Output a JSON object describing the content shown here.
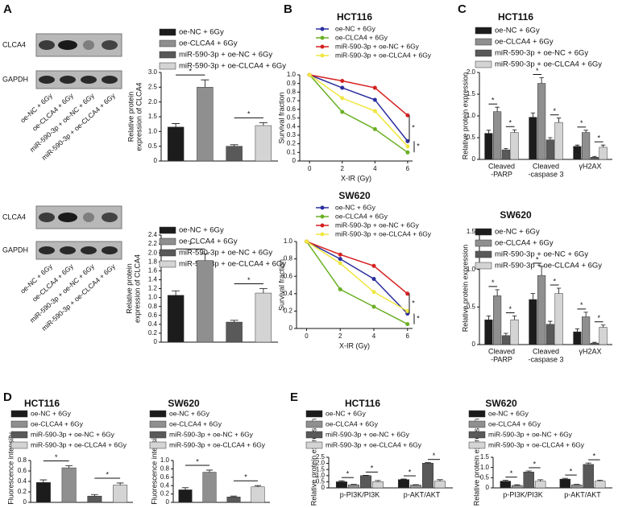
{
  "panel_labels": [
    "A",
    "B",
    "C",
    "D",
    "E"
  ],
  "blots": [
    {
      "labels": [
        "CLCA4",
        "GAPDH"
      ],
      "lanes": [
        "oe-NC + 6Gy",
        "oe-CLCA4 + 6Gy",
        "miR-590-3p + oe-NC + 6Gy",
        "miR-590-3p + oe-CLCA4 + 6Gy"
      ]
    },
    {
      "labels": [
        "CLCA4",
        "GAPDH"
      ],
      "lanes": [
        "oe-NC + 6Gy",
        "oe-CLCA4 + 6Gy",
        "miR-590-3p + oe-NC + 6Gy",
        "miR-590-3p + oe-CLCA4 + 6Gy"
      ]
    }
  ],
  "chart_data": [
    {
      "type": "bar",
      "ylabel": [
        "Relative protein",
        "expression of CLCA4"
      ],
      "categories": [
        "oe-NC + 6Gy",
        "oe-CLCA4 + 6Gy",
        "miR-590-3p + oe-NC + 6Gy",
        "miR-590-3p + oe-CLCA4 + 6Gy"
      ],
      "colors": [
        "#1c1c1c",
        "#8f8f8f",
        "#595959",
        "#d4d4d4"
      ],
      "values": [
        1.15,
        2.5,
        0.5,
        1.2
      ],
      "errors": [
        0.12,
        0.25,
        0.05,
        0.1
      ],
      "ylim": [
        0,
        3
      ],
      "yticks": [
        0,
        0.5,
        {
          "value": 1,
          "label": "1.0"
        },
        1.5,
        {
          "value": 2,
          "label": "2.0"
        },
        2.5,
        {
          "value": 3,
          "label": "3.0"
        }
      ],
      "annotations": [
        "*",
        "*"
      ]
    },
    {
      "type": "bar",
      "ylabel": [
        "Relative protein",
        "expression of CLCA4"
      ],
      "categories": [
        "oe-NC + 6Gy",
        "oe-CLCA4 + 6Gy",
        "miR-590-3p + oe-NC + 6Gy",
        "miR-590-3p + oe-CLCA4 + 6Gy"
      ],
      "colors": [
        "#1c1c1c",
        "#8f8f8f",
        "#595959",
        "#d4d4d4"
      ],
      "values": [
        1.05,
        1.83,
        0.45,
        1.1
      ],
      "errors": [
        0.1,
        0.15,
        0.04,
        0.1
      ],
      "ylim": [
        0,
        2.4
      ],
      "yticks": [
        0,
        0.2,
        0.4,
        0.6,
        0.8,
        {
          "value": 1,
          "label": "1.0"
        },
        1.2,
        1.4,
        1.6,
        1.8,
        {
          "value": 2,
          "label": "2.0"
        },
        2.2,
        2.4
      ],
      "annotations": [
        "*",
        "*"
      ]
    },
    {
      "type": "line",
      "title": "HCT116",
      "xlabel": "X-IR (Gy)",
      "ylabel": "Survival fraction",
      "x": [
        0,
        2,
        4,
        6
      ],
      "xlim": [
        -0.6,
        6.3
      ],
      "xticks": [
        0,
        2,
        4,
        6
      ],
      "series": [
        {
          "name": "oe-NC + 6Gy",
          "color": "#2b2f9e",
          "values": [
            1.0,
            0.85,
            0.71,
            0.23
          ]
        },
        {
          "name": "oe-CLCA4 + 6Gy",
          "color": "#6ab023",
          "values": [
            1.0,
            0.57,
            0.37,
            0.1
          ]
        },
        {
          "name": "miR-590-3p + oe-NC + 6Gy",
          "color": "#d62020",
          "values": [
            1.0,
            0.93,
            0.85,
            0.53
          ]
        },
        {
          "name": "miR-590-3p + oe-CLCA4 + 6Gy",
          "color": "#f0e640",
          "values": [
            1.0,
            0.73,
            0.58,
            0.17
          ]
        }
      ],
      "ylim": [
        0,
        1
      ],
      "yticks": [
        0,
        0.1,
        0.2,
        0.3,
        0.4,
        0.5,
        0.6,
        0.7,
        0.8,
        0.9,
        {
          "value": 1,
          "label": "1.0"
        }
      ],
      "annotations": [
        "*",
        "*"
      ]
    },
    {
      "type": "line",
      "title": "SW620",
      "xlabel": "X-IR (Gy)",
      "ylabel": "Survival fraction",
      "x": [
        0,
        2,
        4,
        6
      ],
      "xlim": [
        -0.6,
        6.3
      ],
      "xticks": [
        0,
        2,
        4,
        6
      ],
      "series": [
        {
          "name": "oe-NC + 6Gy",
          "color": "#2b2f9e",
          "values": [
            1.0,
            0.8,
            0.57,
            0.17
          ]
        },
        {
          "name": "oe-CLCA4 + 6Gy",
          "color": "#6ab023",
          "values": [
            1.0,
            0.45,
            0.25,
            0.05
          ]
        },
        {
          "name": "miR-590-3p + oe-NC + 6Gy",
          "color": "#d62020",
          "values": [
            1.0,
            0.85,
            0.72,
            0.4
          ]
        },
        {
          "name": "miR-590-3p + oe-CLCA4 + 6Gy",
          "color": "#f0e640",
          "values": [
            1.0,
            0.75,
            0.42,
            0.2
          ]
        }
      ],
      "ylim": [
        0,
        1
      ],
      "yticks": [
        0,
        0.2,
        0.4,
        0.6,
        0.8,
        {
          "value": 1,
          "label": "1.0"
        }
      ],
      "annotations": [
        "*",
        "*"
      ]
    },
    {
      "type": "bar",
      "title": "HCT116",
      "ylabel": "Relative protein expression",
      "categories": [
        [
          "Cleaved",
          "-PARP"
        ],
        [
          "Cleaved",
          "-caspase 3"
        ],
        [
          "γH2AX"
        ]
      ],
      "series": [
        {
          "name": "oe-NC + 6Gy",
          "color": "#1c1c1c",
          "values": [
            0.6,
            0.97,
            0.3
          ],
          "errors": [
            0.07,
            0.1,
            0.03
          ]
        },
        {
          "name": "oe-CLCA4 + 6Gy",
          "color": "#8f8f8f",
          "values": [
            1.1,
            1.75,
            0.62
          ],
          "errors": [
            0.1,
            0.13,
            0.05
          ]
        },
        {
          "name": "miR-590-3p + oe-NC + 6Gy",
          "color": "#595959",
          "values": [
            0.22,
            0.45,
            0.05
          ],
          "errors": [
            0.03,
            0.05,
            0.02
          ]
        },
        {
          "name": "miR-590-3p + oe-CLCA4 + 6Gy",
          "color": "#d4d4d4",
          "values": [
            0.62,
            0.85,
            0.28
          ],
          "errors": [
            0.06,
            0.1,
            0.05
          ]
        }
      ],
      "ylim": [
        0,
        2
      ],
      "yticks": [
        0,
        0.5,
        {
          "value": 1,
          "label": "1.0"
        },
        1.5,
        {
          "value": 2,
          "label": "2.0"
        }
      ],
      "annotations": [
        "*",
        "*",
        "*",
        "*",
        "*",
        "*"
      ]
    },
    {
      "type": "bar",
      "title": "SW620",
      "ylabel": "Relative protein expression",
      "categories": [
        [
          "Cleaved",
          "-PARP"
        ],
        [
          "Cleaved",
          "-caspase 3"
        ],
        [
          "γH2AX"
        ]
      ],
      "series": [
        {
          "name": "oe-NC + 6Gy",
          "color": "#1c1c1c",
          "values": [
            0.33,
            0.6,
            0.17
          ],
          "errors": [
            0.05,
            0.08,
            0.04
          ]
        },
        {
          "name": "oe-CLCA4 + 6Gy",
          "color": "#8f8f8f",
          "values": [
            0.65,
            0.92,
            0.37
          ],
          "errors": [
            0.08,
            0.12,
            0.06
          ]
        },
        {
          "name": "miR-590-3p + oe-NC + 6Gy",
          "color": "#595959",
          "values": [
            0.12,
            0.27,
            0.02
          ],
          "errors": [
            0.03,
            0.04,
            0.01
          ]
        },
        {
          "name": "miR-590-3p + oe-CLCA4 + 6Gy",
          "color": "#d4d4d4",
          "values": [
            0.33,
            0.68,
            0.23
          ],
          "errors": [
            0.05,
            0.07,
            0.03
          ]
        }
      ],
      "ylim": [
        0,
        1.5
      ],
      "yticks": [
        0,
        0.5,
        {
          "value": 1,
          "label": "1.0"
        },
        1.5
      ],
      "annotations": [
        "*",
        "*",
        "*",
        "*",
        "*",
        "*"
      ]
    },
    {
      "type": "bar",
      "title": "HCT116",
      "ylabel": "Fluorescence intensity",
      "categories": [
        "oe-NC + 6Gy",
        "oe-CLCA4 + 6Gy",
        "miR-590-3p + oe-NC + 6Gy",
        "miR-590-3p + oe-CLCA4 + 6Gy"
      ],
      "colors": [
        "#1c1c1c",
        "#8f8f8f",
        "#595959",
        "#d4d4d4"
      ],
      "values": [
        0.38,
        0.66,
        0.12,
        0.33
      ],
      "errors": [
        0.05,
        0.04,
        0.03,
        0.04
      ],
      "ylim": [
        0,
        0.8
      ],
      "yticks": [
        0,
        0.2,
        0.4,
        0.6,
        0.8
      ],
      "annotations": [
        "*",
        "*"
      ]
    },
    {
      "type": "bar",
      "title": "SW620",
      "ylabel": "Fluorescence intensity",
      "categories": [
        "oe-NC + 6Gy",
        "oe-CLCA4 + 6Gy",
        "miR-590-3p + oe-NC + 6Gy",
        "miR-590-3p + oe-CLCA4 + 6Gy"
      ],
      "colors": [
        "#1c1c1c",
        "#8f8f8f",
        "#595959",
        "#d4d4d4"
      ],
      "values": [
        0.3,
        0.72,
        0.13,
        0.37
      ],
      "errors": [
        0.05,
        0.05,
        0.02,
        0.03
      ],
      "ylim": [
        0,
        1
      ],
      "yticks": [
        0,
        0.2,
        0.4,
        0.6,
        0.8,
        {
          "value": 1,
          "label": "1.0"
        }
      ],
      "annotations": [
        "*",
        "*"
      ]
    },
    {
      "type": "bar",
      "title": "HCT116",
      "ylabel": "Relative protein expression",
      "categories": [
        [
          "p-PI3K/PI3K"
        ],
        [
          "p-AKT/AKT"
        ]
      ],
      "series": [
        {
          "name": "oe-NC + 6Gy",
          "color": "#1c1c1c",
          "values": [
            0.5,
            0.68
          ],
          "errors": [
            0.08,
            0.04
          ]
        },
        {
          "name": "oe-CLCA4 + 6Gy",
          "color": "#8f8f8f",
          "values": [
            0.25,
            0.23
          ],
          "errors": [
            0.04,
            0.03
          ]
        },
        {
          "name": "miR-590-3p + oe-NC + 6Gy",
          "color": "#595959",
          "values": [
            1.0,
            2.02
          ],
          "errors": [
            0.03,
            0.04
          ]
        },
        {
          "name": "miR-590-3p + oe-CLCA4 + 6Gy",
          "color": "#d4d4d4",
          "values": [
            0.5,
            0.55
          ],
          "errors": [
            0.1,
            0.12
          ]
        }
      ],
      "ylim": [
        0,
        2.5
      ],
      "yticks": [
        0,
        0.5,
        {
          "value": 1,
          "label": "1.0"
        },
        1.5,
        {
          "value": 2,
          "label": "2.0"
        },
        2.5
      ],
      "annotations": [
        "*",
        "*",
        "*",
        "*"
      ]
    },
    {
      "type": "bar",
      "title": "SW620",
      "ylabel": "Relative protein expression",
      "categories": [
        [
          "p-PI3K/PI3K"
        ],
        [
          "p-AKT/AKT"
        ]
      ],
      "series": [
        {
          "name": "oe-NC + 6Gy",
          "color": "#1c1c1c",
          "values": [
            0.33,
            0.43
          ],
          "errors": [
            0.04,
            0.04
          ]
        },
        {
          "name": "oe-CLCA4 + 6Gy",
          "color": "#8f8f8f",
          "values": [
            0.12,
            0.15
          ],
          "errors": [
            0.03,
            0.02
          ]
        },
        {
          "name": "miR-590-3p + oe-NC + 6Gy",
          "color": "#595959",
          "values": [
            0.78,
            1.15
          ],
          "errors": [
            0.05,
            0.07
          ]
        },
        {
          "name": "miR-590-3p + oe-CLCA4 + 6Gy",
          "color": "#d4d4d4",
          "values": [
            0.33,
            0.33
          ],
          "errors": [
            0.07,
            0.04
          ]
        }
      ],
      "ylim": [
        0,
        1.5
      ],
      "yticks": [
        0,
        0.5,
        {
          "value": 1,
          "label": "1.0"
        },
        1.5
      ],
      "annotations": [
        "*",
        "*",
        "*",
        "*"
      ]
    }
  ]
}
